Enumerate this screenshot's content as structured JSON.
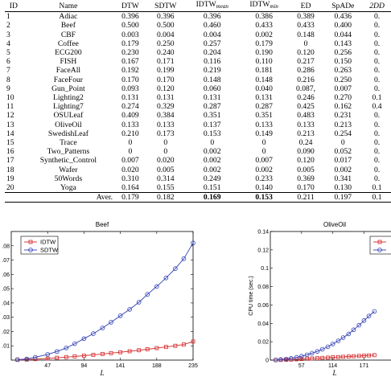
{
  "table": {
    "headers": {
      "id": "ID",
      "name": "Name",
      "dtw": "DTW",
      "sdtw": "SDTW",
      "idtw_mean_main": "IDTW",
      "idtw_mean_sub": "mean",
      "idtw_min_main": "IDTW",
      "idtw_min_sub": "min",
      "ed": "ED",
      "spade": "SpADe",
      "extra": "2DD"
    },
    "rows": [
      {
        "id": "1",
        "name": "Adiac",
        "dtw": "0.396",
        "sdtw": "0.396",
        "idtw_mean": "0.396",
        "idtw_min": "0.386",
        "ed": "0.389",
        "spade": "0.436",
        "extra": "0."
      },
      {
        "id": "2",
        "name": "Beef",
        "dtw": "0.500",
        "sdtw": "0.500",
        "idtw_mean": "0.460",
        "idtw_min": "0.433",
        "ed": "0.433",
        "spade": "0.400",
        "extra": "0."
      },
      {
        "id": "3",
        "name": "CBF",
        "dtw": "0.003",
        "sdtw": "0.004",
        "idtw_mean": "0.004",
        "idtw_min": "0.002",
        "ed": "0.148",
        "spade": "0.044",
        "extra": "0."
      },
      {
        "id": "4",
        "name": "Coffee",
        "dtw": "0.179",
        "sdtw": "0.250",
        "idtw_mean": "0.257",
        "idtw_min": "0.179",
        "ed": "0",
        "spade": "0.143",
        "extra": "0."
      },
      {
        "id": "5",
        "name": "ECG200",
        "dtw": "0.230",
        "sdtw": "0.240",
        "idtw_mean": "0.204",
        "idtw_min": "0.190",
        "ed": "0.120",
        "spade": "0.256",
        "extra": "0."
      },
      {
        "id": "6",
        "name": "FISH",
        "dtw": "0.167",
        "sdtw": "0.171",
        "idtw_mean": "0.116",
        "idtw_min": "0.110",
        "ed": "0.217",
        "spade": "0.150",
        "extra": "0."
      },
      {
        "id": "7",
        "name": "FaceAll",
        "dtw": "0.192",
        "sdtw": "0.199",
        "idtw_mean": "0.219",
        "idtw_min": "0.181",
        "ed": "0.286",
        "spade": "0.263",
        "extra": "0."
      },
      {
        "id": "8",
        "name": "FaceFour",
        "dtw": "0.170",
        "sdtw": "0.170",
        "idtw_mean": "0.148",
        "idtw_min": "0.148",
        "ed": "0.216",
        "spade": "0.250",
        "extra": "0."
      },
      {
        "id": "9",
        "name": "Gun_Point",
        "dtw": "0.093",
        "sdtw": "0.120",
        "idtw_mean": "0.060",
        "idtw_min": "0.040",
        "ed": "0.087,",
        "spade": "0.007",
        "extra": "0."
      },
      {
        "id": "10",
        "name": "Lighting2",
        "dtw": "0.131",
        "sdtw": "0.131",
        "idtw_mean": "0.131",
        "idtw_min": "0.131",
        "ed": "0.246",
        "spade": "0.270",
        "extra": "0.1"
      },
      {
        "id": "11",
        "name": "Lighting7",
        "dtw": "0.274",
        "sdtw": "0.329",
        "idtw_mean": "0.287",
        "idtw_min": "0.287",
        "ed": "0.425",
        "spade": "0.162",
        "extra": "0.4"
      },
      {
        "id": "12",
        "name": "OSULeaf",
        "dtw": "0.409",
        "sdtw": "0.384",
        "idtw_mean": "0.351",
        "idtw_min": "0.351",
        "ed": "0.483",
        "spade": "0.231",
        "extra": "0."
      },
      {
        "id": "13",
        "name": "OliveOil",
        "dtw": "0.133",
        "sdtw": "0.133",
        "idtw_mean": "0.137",
        "idtw_min": "0.133",
        "ed": "0.133",
        "spade": "0.213",
        "extra": "0."
      },
      {
        "id": "14",
        "name": "SwedishLeaf",
        "dtw": "0.210",
        "sdtw": "0.173",
        "idtw_mean": "0.153",
        "idtw_min": "0.149",
        "ed": "0.213",
        "spade": "0.254",
        "extra": "0."
      },
      {
        "id": "15",
        "name": "Trace",
        "dtw": "0",
        "sdtw": "0",
        "idtw_mean": "0",
        "idtw_min": "0",
        "ed": "0.24",
        "spade": "0",
        "extra": "0."
      },
      {
        "id": "16",
        "name": "Two_Patterns",
        "dtw": "0",
        "sdtw": "0",
        "idtw_mean": "0.002",
        "idtw_min": "0",
        "ed": "0.090",
        "spade": "0.052",
        "extra": "0."
      },
      {
        "id": "17",
        "name": "Synthetic_Control",
        "dtw": "0.007",
        "sdtw": "0.020",
        "idtw_mean": "0.002",
        "idtw_min": "0.007",
        "ed": "0.120",
        "spade": "0.017",
        "extra": "0."
      },
      {
        "id": "18",
        "name": "Wafer",
        "dtw": "0.020",
        "sdtw": "0.005",
        "idtw_mean": "0.002",
        "idtw_min": "0.002",
        "ed": "0.005",
        "spade": "0.002",
        "extra": "0."
      },
      {
        "id": "19",
        "name": "50Words",
        "dtw": "0.310",
        "sdtw": "0.314",
        "idtw_mean": "0.249",
        "idtw_min": "0.233",
        "ed": "0.369",
        "spade": "0.341",
        "extra": "0."
      },
      {
        "id": "20",
        "name": "Yoga",
        "dtw": "0.164",
        "sdtw": "0.155",
        "idtw_mean": "0.151",
        "idtw_min": "0.140",
        "ed": "0.170",
        "spade": "0.130",
        "extra": "0.1"
      }
    ],
    "average": {
      "id": "",
      "name": "Aver.",
      "dtw": "0.179",
      "sdtw": "0.182",
      "idtw_mean": "0.169",
      "idtw_min": "0.153",
      "ed": "0.211",
      "spade": "0.197",
      "extra": "0.1"
    }
  },
  "chart_data": [
    {
      "type": "line",
      "title": "Beef",
      "xlabel": "L",
      "ylabel": "",
      "x": [
        8,
        20,
        31,
        47,
        59,
        71,
        82,
        94,
        106,
        118,
        129,
        141,
        153,
        165,
        176,
        188,
        200,
        212,
        223,
        235
      ],
      "xticks": [
        47,
        94,
        141,
        188,
        235
      ],
      "xlim": [
        0,
        235
      ],
      "yticks": [
        0.01,
        0.02,
        0.03,
        0.04,
        0.05,
        0.06,
        0.07,
        0.08
      ],
      "ytick_labels": [
        ".01",
        ".02",
        ".03",
        ".04",
        ".05",
        ".06",
        ".07",
        ".08"
      ],
      "ylim": [
        0,
        0.09
      ],
      "legend": "top-left",
      "grid": false,
      "series": [
        {
          "name": "IDTW",
          "color": "#d62728",
          "marker": "square",
          "values": [
            0.0002,
            0.0004,
            0.0007,
            0.0011,
            0.0016,
            0.0021,
            0.0026,
            0.0031,
            0.0037,
            0.0043,
            0.0049,
            0.0055,
            0.0062,
            0.0069,
            0.0076,
            0.0084,
            0.0092,
            0.01,
            0.0109,
            0.013
          ]
        },
        {
          "name": "SDTW",
          "color": "#2f3fb5",
          "marker": "circle",
          "values": [
            0.0003,
            0.0008,
            0.002,
            0.004,
            0.006,
            0.0085,
            0.0115,
            0.015,
            0.0185,
            0.0225,
            0.0265,
            0.031,
            0.0355,
            0.0405,
            0.046,
            0.0515,
            0.0575,
            0.064,
            0.071,
            0.082
          ]
        }
      ]
    },
    {
      "type": "line",
      "title": "OliveOil",
      "xlabel": "L",
      "ylabel": "CPU time (sec.)",
      "x": [
        10,
        19,
        29,
        38,
        48,
        57,
        67,
        76,
        86,
        95,
        105,
        114,
        124,
        133,
        143,
        152,
        162,
        171,
        180,
        190
      ],
      "xticks": [
        57,
        114,
        171
      ],
      "xlim": [
        0,
        235
      ],
      "yticks": [
        0,
        0.02,
        0.04,
        0.06,
        0.08,
        0.1,
        0.12,
        0.14
      ],
      "ytick_labels": [
        "0",
        "0.02",
        "0.04",
        "0.06",
        "0.08",
        "0.1",
        "0.12",
        "0.14"
      ],
      "ylim": [
        0,
        0.14
      ],
      "legend": "top-right",
      "grid": false,
      "series": [
        {
          "name": "",
          "color": "#d62728",
          "marker": "square",
          "values": [
            0.0001,
            0.0002,
            0.0004,
            0.0006,
            0.0009,
            0.0012,
            0.0015,
            0.0018,
            0.0021,
            0.0024,
            0.0027,
            0.003,
            0.0033,
            0.0036,
            0.0039,
            0.0042,
            0.0045,
            0.0048,
            0.0051,
            0.0054
          ]
        },
        {
          "name": "",
          "color": "#2f3fb5",
          "marker": "circle",
          "values": [
            0.0002,
            0.0006,
            0.0012,
            0.002,
            0.003,
            0.0042,
            0.0058,
            0.0075,
            0.0095,
            0.0118,
            0.0145,
            0.0175,
            0.021,
            0.0245,
            0.0285,
            0.033,
            0.038,
            0.043,
            0.048,
            0.053
          ]
        }
      ]
    }
  ]
}
